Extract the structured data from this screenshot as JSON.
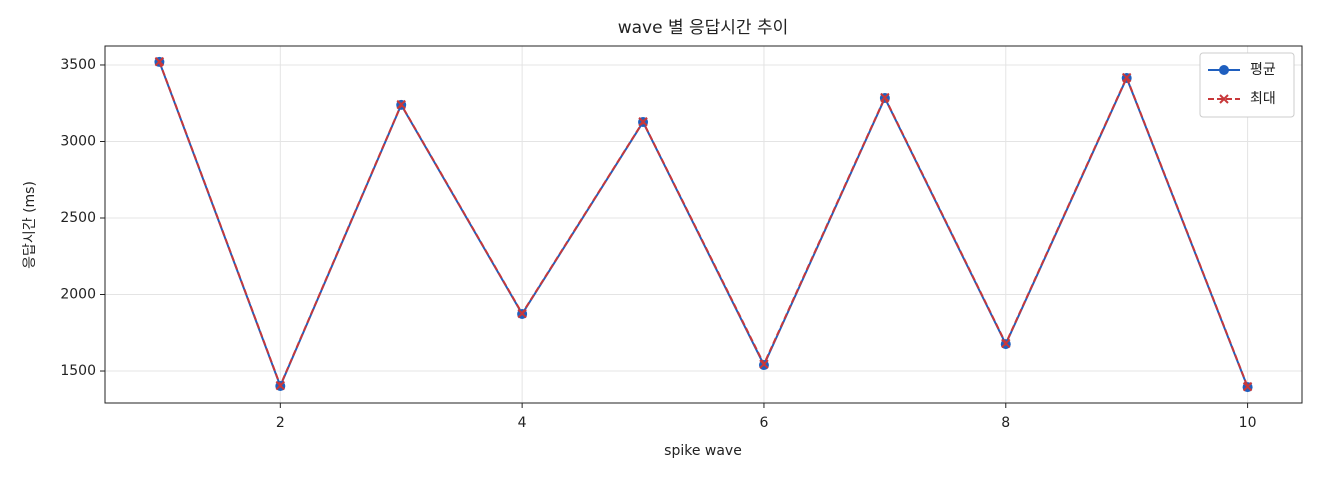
{
  "chart_data": {
    "type": "line",
    "title": "wave 별 응답시간 추이",
    "x_label": "spike wave",
    "y_label": "응답시간 (ms)",
    "x": [
      1,
      2,
      3,
      4,
      5,
      6,
      7,
      8,
      9,
      10
    ],
    "series": [
      {
        "name": "평균",
        "color": "#1f5fbf",
        "marker": "o",
        "dashed": false,
        "values": [
          3520,
          1402,
          3239,
          1873,
          3127,
          1539,
          3284,
          1676,
          3415,
          1395
        ]
      },
      {
        "name": "최대",
        "color": "#c8383a",
        "marker": "x",
        "dashed": true,
        "values": [
          3522,
          1405,
          3241,
          1876,
          3129,
          1545,
          3287,
          1680,
          3418,
          1398
        ]
      }
    ],
    "xlim": [
      0.55,
      10.45
    ],
    "xticks": [
      2,
      4,
      6,
      8,
      10
    ],
    "ylim": [
      1291,
      3624
    ],
    "yticks": [
      1500,
      2000,
      2500,
      3000,
      3500
    ],
    "grid": true,
    "legend": "upper right"
  }
}
